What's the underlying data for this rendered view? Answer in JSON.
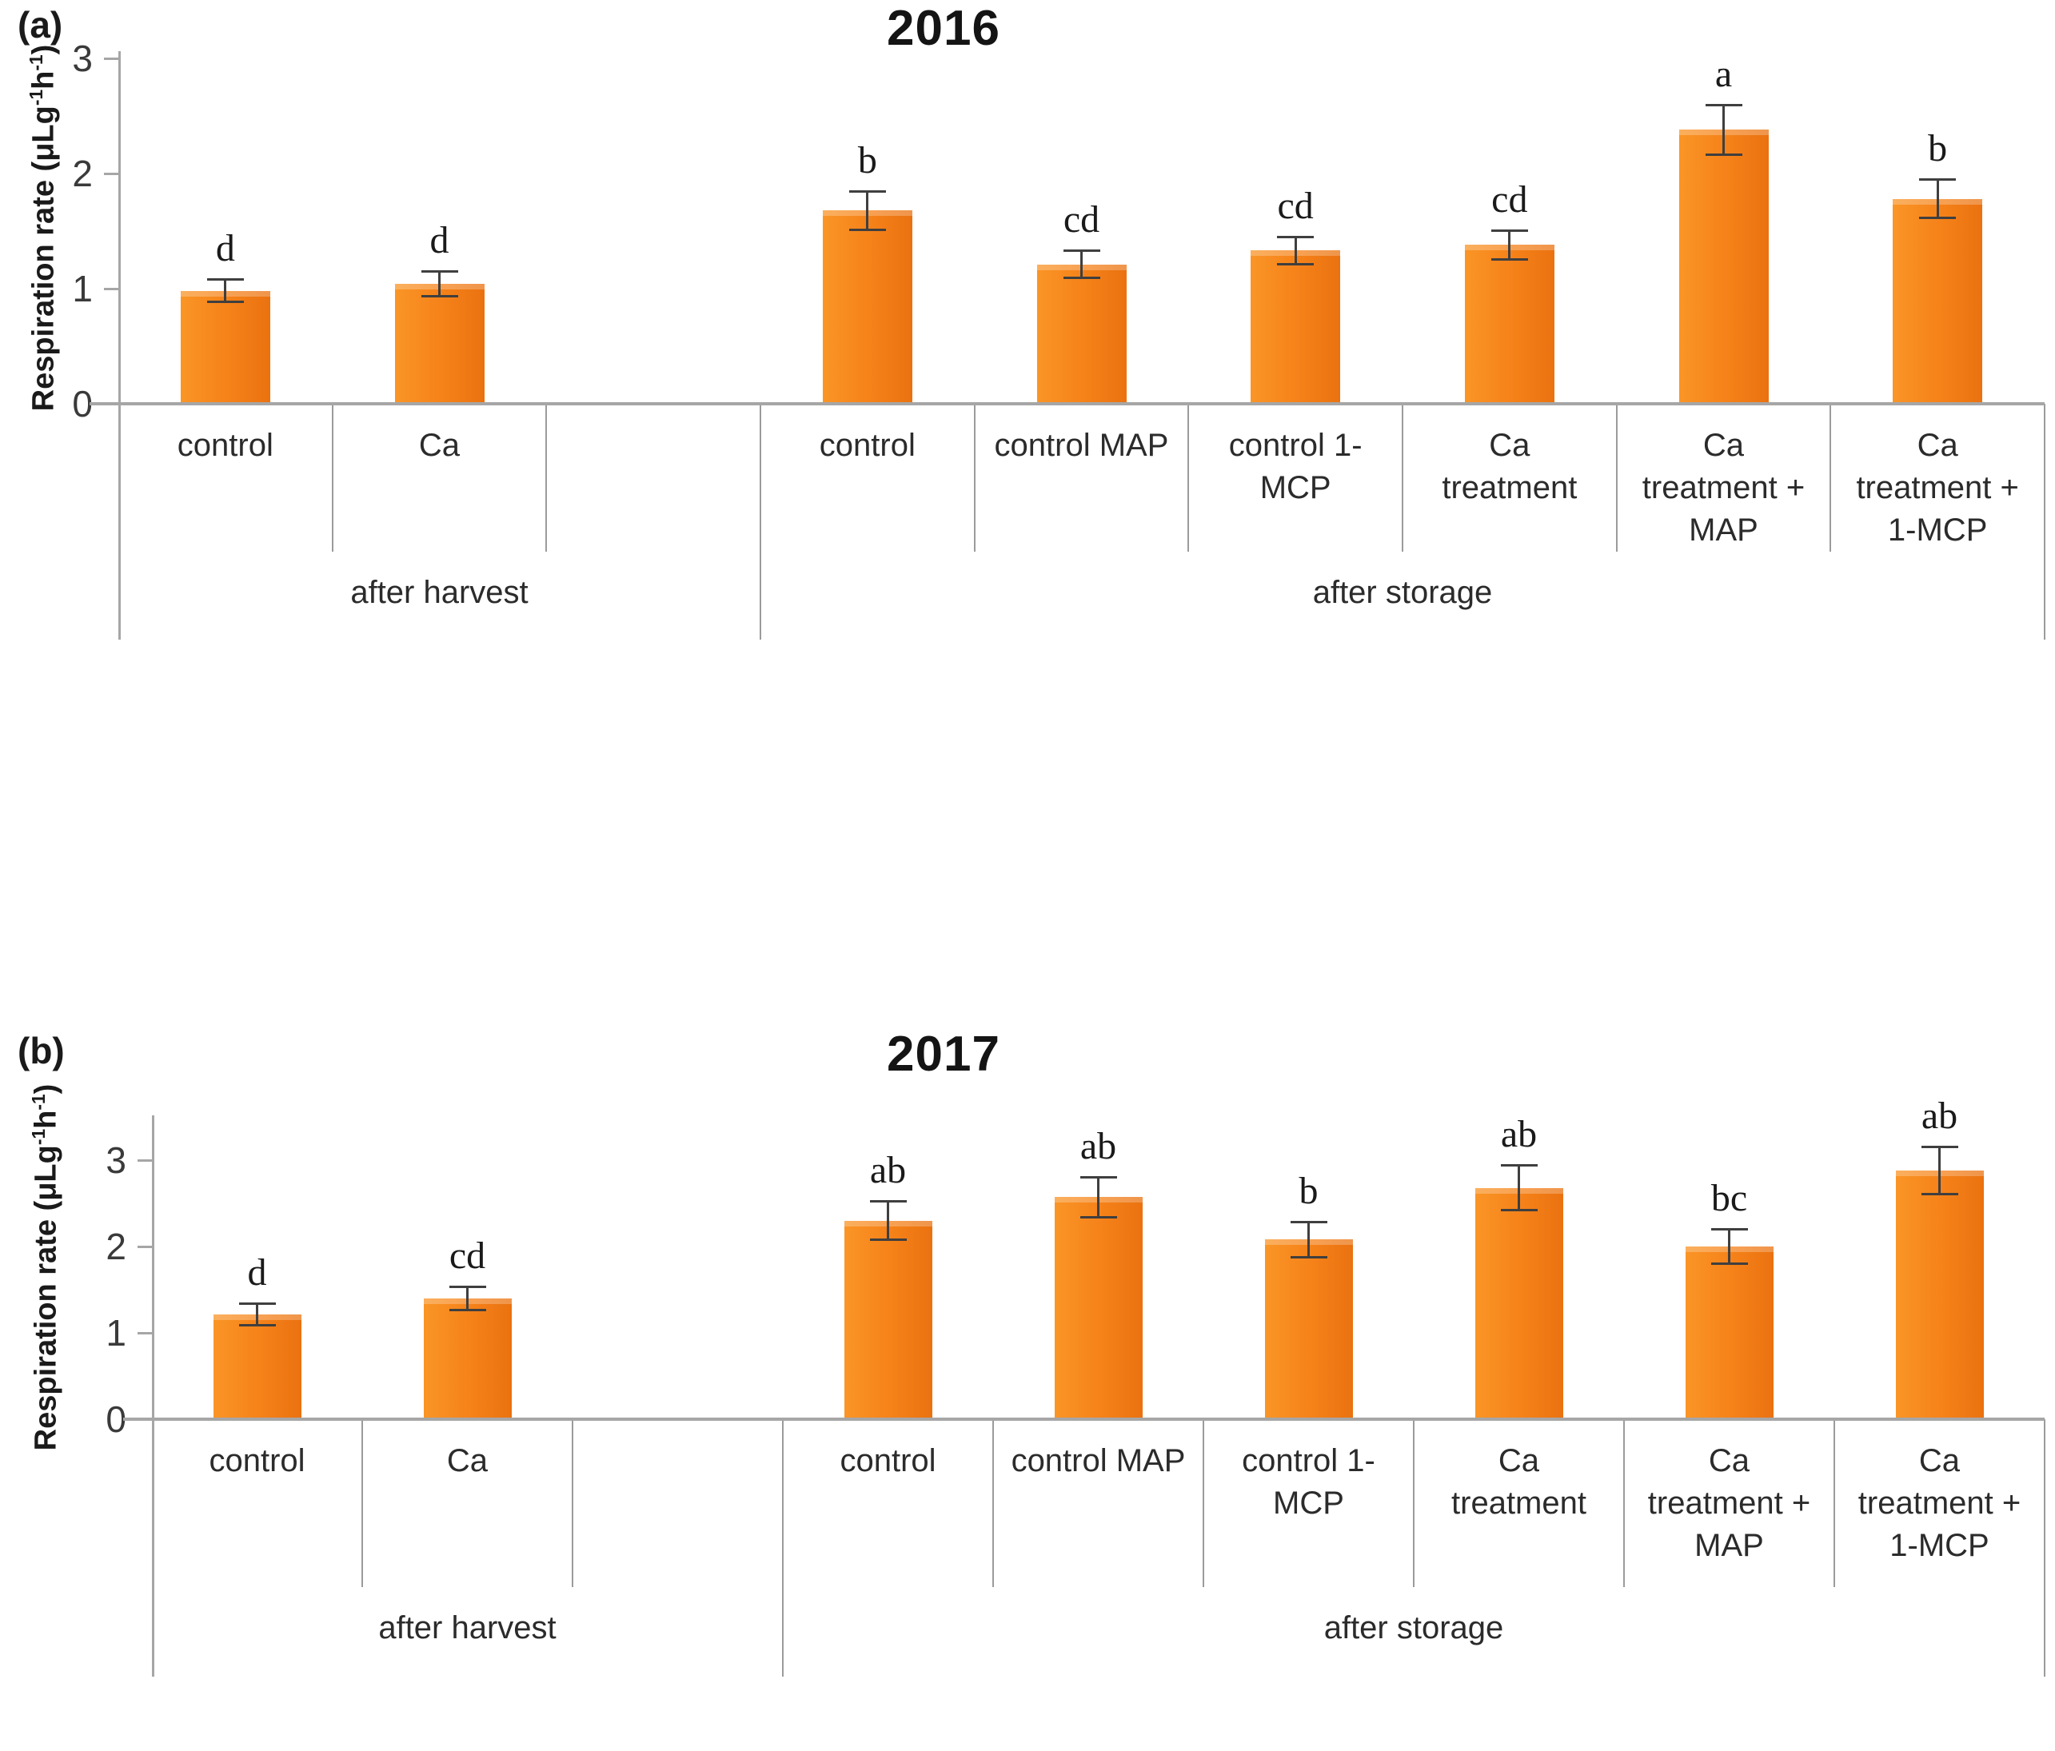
{
  "figure": {
    "description": "Two-panel bar chart of respiration rate by treatment, years 2016 and 2017"
  },
  "colors": {
    "bar_main": "#F58119",
    "bar_light": "#FA9526",
    "bar_dark": "#EA7210",
    "axis_gray": "#A6A6A6",
    "separator_gray": "#9B9B9B",
    "error_bar": "#3F3F3F",
    "text_dark": "#2B2B2B",
    "letter_black": "#1A1A1A"
  },
  "chart_data": [
    {
      "type": "bar",
      "panel_label": "(a)",
      "title": "2016",
      "ylabel": "Respiration rate (μLg-1h-1)",
      "ylabel_segments": [
        {
          "text": "Respiration rate (μLg"
        },
        {
          "sup": "-1"
        },
        {
          "text": "h"
        },
        {
          "sup": "-1"
        },
        {
          "text": ")"
        }
      ],
      "y_ticks": [
        0,
        1,
        2,
        3
      ],
      "ylim": [
        0,
        3.05
      ],
      "grid": false,
      "legend": "none",
      "groups": [
        {
          "label": "after harvest",
          "span": 3
        },
        {
          "label": "after storage",
          "span": 6
        }
      ],
      "categories": [
        {
          "label": "control",
          "lines": [
            "control"
          ]
        },
        {
          "label": "Ca",
          "lines": [
            "Ca"
          ]
        },
        {
          "label": "",
          "lines": []
        },
        {
          "label": "control",
          "lines": [
            "control"
          ]
        },
        {
          "label": "control MAP",
          "lines": [
            "control MAP"
          ]
        },
        {
          "label": "control 1-MCP",
          "lines": [
            "control 1-",
            "MCP"
          ]
        },
        {
          "label": "Ca treatment",
          "lines": [
            "Ca",
            "treatment"
          ]
        },
        {
          "label": "Ca treatment + MAP",
          "lines": [
            "Ca",
            "treatment +",
            "MAP"
          ]
        },
        {
          "label": "Ca treatment + 1-MCP",
          "lines": [
            "Ca",
            "treatment +",
            "1-MCP"
          ]
        }
      ],
      "values": [
        0.98,
        1.04,
        null,
        1.68,
        1.21,
        1.33,
        1.38,
        2.38,
        1.78
      ],
      "errors": [
        0.1,
        0.11,
        null,
        0.17,
        0.12,
        0.12,
        0.13,
        0.22,
        0.17
      ],
      "letters": [
        "d",
        "d",
        "",
        "b",
        "cd",
        "cd",
        "cd",
        "a",
        "b"
      ]
    },
    {
      "type": "bar",
      "panel_label": "(b)",
      "title": "2017",
      "ylabel": "Respiration rate (μLg-1h-1)",
      "ylabel_segments": [
        {
          "text": "Respiration rate (μLg"
        },
        {
          "sup": "-1"
        },
        {
          "text": "h"
        },
        {
          "sup": "-1"
        },
        {
          "text": ")"
        }
      ],
      "y_ticks": [
        0,
        1,
        2,
        3
      ],
      "ylim": [
        0,
        3.5
      ],
      "grid": false,
      "legend": "none",
      "groups": [
        {
          "label": "after harvest",
          "span": 3
        },
        {
          "label": "after storage",
          "span": 6
        }
      ],
      "categories": [
        {
          "label": "control",
          "lines": [
            "control"
          ]
        },
        {
          "label": "Ca",
          "lines": [
            "Ca"
          ]
        },
        {
          "label": "",
          "lines": []
        },
        {
          "label": "control",
          "lines": [
            "control"
          ]
        },
        {
          "label": "control MAP",
          "lines": [
            "control MAP"
          ]
        },
        {
          "label": "control 1-MCP",
          "lines": [
            "control 1-",
            "MCP"
          ]
        },
        {
          "label": "Ca treatment",
          "lines": [
            "Ca",
            "treatment"
          ]
        },
        {
          "label": "Ca treatment + MAP",
          "lines": [
            "Ca",
            "treatment +",
            "MAP"
          ]
        },
        {
          "label": "Ca treatment + 1-MCP",
          "lines": [
            "Ca",
            "treatment +",
            "1-MCP"
          ]
        }
      ],
      "values": [
        1.21,
        1.4,
        null,
        2.3,
        2.57,
        2.08,
        2.68,
        2.0,
        2.88
      ],
      "errors": [
        0.13,
        0.14,
        null,
        0.23,
        0.24,
        0.21,
        0.26,
        0.2,
        0.28
      ],
      "letters": [
        "d",
        "cd",
        "",
        "ab",
        "ab",
        "b",
        "ab",
        "bc",
        "ab"
      ]
    }
  ]
}
